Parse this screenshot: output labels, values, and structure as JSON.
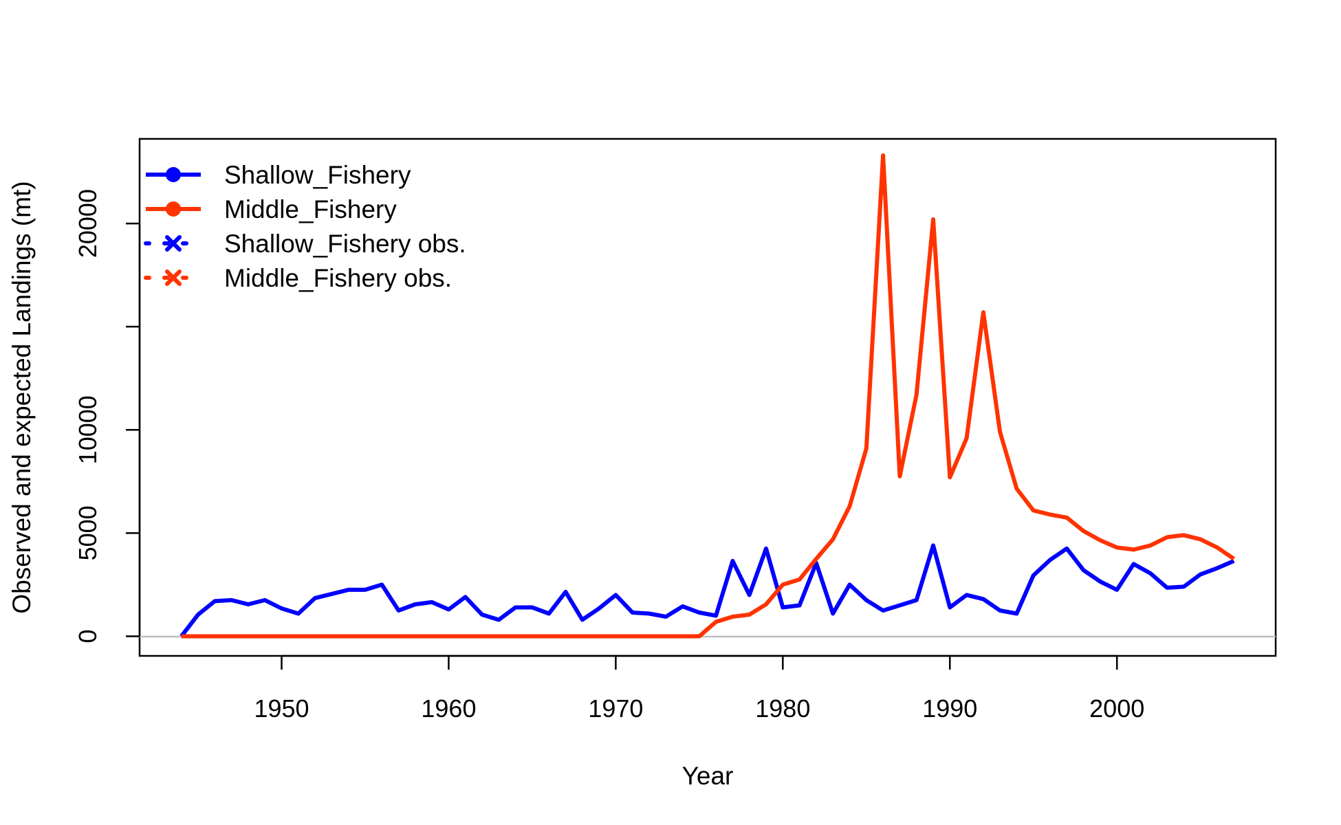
{
  "chart_data": {
    "type": "line",
    "title": "",
    "xlabel": "Year",
    "ylabel": "Observed and expected Landings (mt)",
    "xlim": [
      1941.5,
      2009.5
    ],
    "ylim": [
      -950,
      24100
    ],
    "x_ticks": [
      1950,
      1960,
      1970,
      1980,
      1990,
      2000
    ],
    "x_tick_labels": [
      "1950",
      "1960",
      "1970",
      "1980",
      "1990",
      "2000"
    ],
    "y_ticks": [
      0,
      5000,
      10000,
      15000,
      20000
    ],
    "y_tick_labels": [
      "0",
      "5000",
      "10000",
      "",
      "20000"
    ],
    "zero_reference_line": true,
    "grid": false,
    "legend": {
      "position": "top-left",
      "entries": [
        {
          "label": "Shallow_Fishery",
          "color": "#0000ff",
          "style": "solid",
          "marker": "dot"
        },
        {
          "label": "Middle_Fishery",
          "color": "#ff3300",
          "style": "solid",
          "marker": "dot"
        },
        {
          "label": "Shallow_Fishery obs.",
          "color": "#0000ff",
          "style": "dotted",
          "marker": "x"
        },
        {
          "label": "Middle_Fishery obs.",
          "color": "#ff3300",
          "style": "dotted",
          "marker": "x"
        }
      ]
    },
    "x": [
      1944,
      1945,
      1946,
      1947,
      1948,
      1949,
      1950,
      1951,
      1952,
      1953,
      1954,
      1955,
      1956,
      1957,
      1958,
      1959,
      1960,
      1961,
      1962,
      1963,
      1964,
      1965,
      1966,
      1967,
      1968,
      1969,
      1970,
      1971,
      1972,
      1973,
      1974,
      1975,
      1976,
      1977,
      1978,
      1979,
      1980,
      1981,
      1982,
      1983,
      1984,
      1985,
      1986,
      1987,
      1988,
      1989,
      1990,
      1991,
      1992,
      1993,
      1994,
      1995,
      1996,
      1997,
      1998,
      1999,
      2000,
      2001,
      2002,
      2003,
      2004,
      2005,
      2006,
      2007
    ],
    "series": [
      {
        "name": "Shallow_Fishery",
        "color": "#0000ff",
        "values": [
          0,
          1050,
          1700,
          1750,
          1550,
          1750,
          1350,
          1100,
          1850,
          2050,
          2250,
          2250,
          2500,
          1250,
          1550,
          1650,
          1300,
          1900,
          1050,
          800,
          1400,
          1400,
          1100,
          2150,
          800,
          1350,
          2000,
          1150,
          1100,
          950,
          1450,
          1150,
          1000,
          3650,
          2000,
          4250,
          1400,
          1500,
          3550,
          1100,
          2500,
          1750,
          1250,
          1500,
          1750,
          4400,
          1400,
          2000,
          1800,
          1250,
          1100,
          2950,
          3700,
          4250,
          3200,
          2650,
          2250,
          3500,
          3050,
          2350,
          2400,
          3000,
          3300,
          3650
        ]
      },
      {
        "name": "Middle_Fishery",
        "color": "#ff3300",
        "values": [
          0,
          0,
          0,
          0,
          0,
          0,
          0,
          0,
          0,
          0,
          0,
          0,
          0,
          0,
          0,
          0,
          0,
          0,
          0,
          0,
          0,
          0,
          0,
          0,
          0,
          0,
          0,
          0,
          0,
          0,
          0,
          0,
          700,
          950,
          1050,
          1550,
          2500,
          2750,
          3750,
          4700,
          6300,
          9100,
          23300,
          7750,
          11700,
          20200,
          7700,
          9600,
          15700,
          9900,
          7150,
          6100,
          5900,
          5750,
          5100,
          4650,
          4300,
          4200,
          4400,
          4800,
          4900,
          4700,
          4300,
          3750
        ]
      }
    ]
  }
}
